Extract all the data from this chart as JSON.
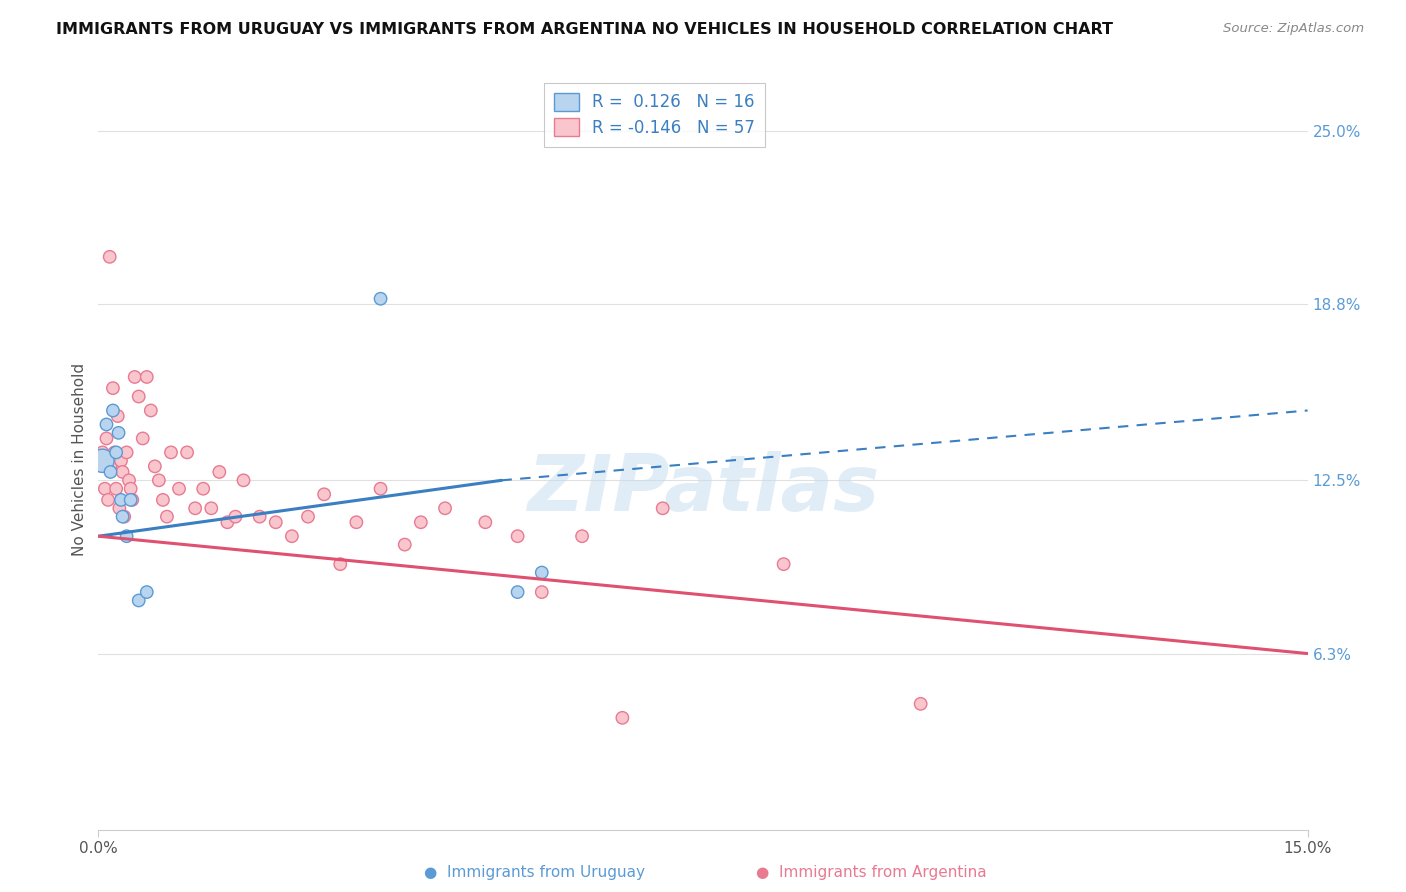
{
  "title": "IMMIGRANTS FROM URUGUAY VS IMMIGRANTS FROM ARGENTINA NO VEHICLES IN HOUSEHOLD CORRELATION CHART",
  "source": "Source: ZipAtlas.com",
  "ylabel": "No Vehicles in Household",
  "xlim": [
    0.0,
    15.0
  ],
  "ylim": [
    0.0,
    26.5
  ],
  "x_tick_labels": [
    "0.0%",
    "15.0%"
  ],
  "x_tick_vals": [
    0.0,
    15.0
  ],
  "y_tick_labels": [
    "25.0%",
    "18.8%",
    "12.5%",
    "6.3%"
  ],
  "y_tick_vals": [
    25.0,
    18.8,
    12.5,
    6.3
  ],
  "title_color": "#222222",
  "source_color": "#888888",
  "uruguay_color": "#b8d4ee",
  "uruguay_edge_color": "#5b9bd5",
  "argentina_color": "#f9c6ce",
  "argentina_edge_color": "#e87a91",
  "uruguay_line_color": "#3a7fc1",
  "argentina_line_color": "#e05070",
  "r_uruguay": 0.126,
  "n_uruguay": 16,
  "r_argentina": -0.146,
  "n_argentina": 57,
  "watermark": "ZIPatlas",
  "background_color": "#ffffff",
  "grid_color": "#e0e0e0",
  "uruguay_line_x0": 0.0,
  "uruguay_line_y0": 10.5,
  "uruguay_line_x1": 5.0,
  "uruguay_line_y1": 12.5,
  "uruguay_dash_x0": 5.0,
  "uruguay_dash_y0": 12.5,
  "uruguay_dash_x1": 15.0,
  "uruguay_dash_y1": 15.0,
  "argentina_line_x0": 0.0,
  "argentina_line_y0": 10.5,
  "argentina_line_x1": 15.0,
  "argentina_line_y1": 6.3,
  "uruguay_scatter_x": [
    0.05,
    0.1,
    0.15,
    0.18,
    0.22,
    0.25,
    0.28,
    0.3,
    0.35,
    0.4,
    0.5,
    0.6,
    3.5,
    5.2,
    5.5
  ],
  "uruguay_scatter_y": [
    13.2,
    14.5,
    12.8,
    15.0,
    13.5,
    14.2,
    11.8,
    11.2,
    10.5,
    11.8,
    8.2,
    8.5,
    19.0,
    8.5,
    9.2
  ],
  "uruguay_scatter_s": [
    280,
    80,
    80,
    80,
    80,
    80,
    80,
    80,
    80,
    80,
    80,
    80,
    80,
    80,
    80
  ],
  "argentina_scatter_x": [
    0.05,
    0.08,
    0.1,
    0.12,
    0.14,
    0.15,
    0.18,
    0.2,
    0.22,
    0.24,
    0.26,
    0.28,
    0.3,
    0.32,
    0.35,
    0.38,
    0.4,
    0.42,
    0.45,
    0.5,
    0.55,
    0.6,
    0.65,
    0.7,
    0.75,
    0.8,
    0.85,
    0.9,
    1.0,
    1.1,
    1.2,
    1.3,
    1.4,
    1.5,
    1.6,
    1.7,
    1.8,
    2.0,
    2.2,
    2.4,
    2.6,
    2.8,
    3.0,
    3.2,
    3.5,
    3.8,
    4.0,
    4.3,
    4.8,
    5.2,
    5.5,
    6.0,
    6.5,
    7.0,
    8.5,
    10.2
  ],
  "argentina_scatter_y": [
    13.5,
    12.2,
    14.0,
    11.8,
    20.5,
    13.0,
    15.8,
    13.5,
    12.2,
    14.8,
    11.5,
    13.2,
    12.8,
    11.2,
    13.5,
    12.5,
    12.2,
    11.8,
    16.2,
    15.5,
    14.0,
    16.2,
    15.0,
    13.0,
    12.5,
    11.8,
    11.2,
    13.5,
    12.2,
    13.5,
    11.5,
    12.2,
    11.5,
    12.8,
    11.0,
    11.2,
    12.5,
    11.2,
    11.0,
    10.5,
    11.2,
    12.0,
    9.5,
    11.0,
    12.2,
    10.2,
    11.0,
    11.5,
    11.0,
    10.5,
    8.5,
    10.5,
    4.0,
    11.5,
    9.5,
    4.5
  ],
  "argentina_scatter_s": [
    80,
    80,
    80,
    80,
    80,
    80,
    80,
    80,
    80,
    80,
    80,
    80,
    80,
    80,
    80,
    80,
    80,
    80,
    80,
    80,
    80,
    80,
    80,
    80,
    80,
    80,
    80,
    80,
    80,
    80,
    80,
    80,
    80,
    80,
    80,
    80,
    80,
    80,
    80,
    80,
    80,
    80,
    80,
    80,
    80,
    80,
    80,
    80,
    80,
    80,
    80,
    80,
    80,
    80,
    80,
    80
  ]
}
